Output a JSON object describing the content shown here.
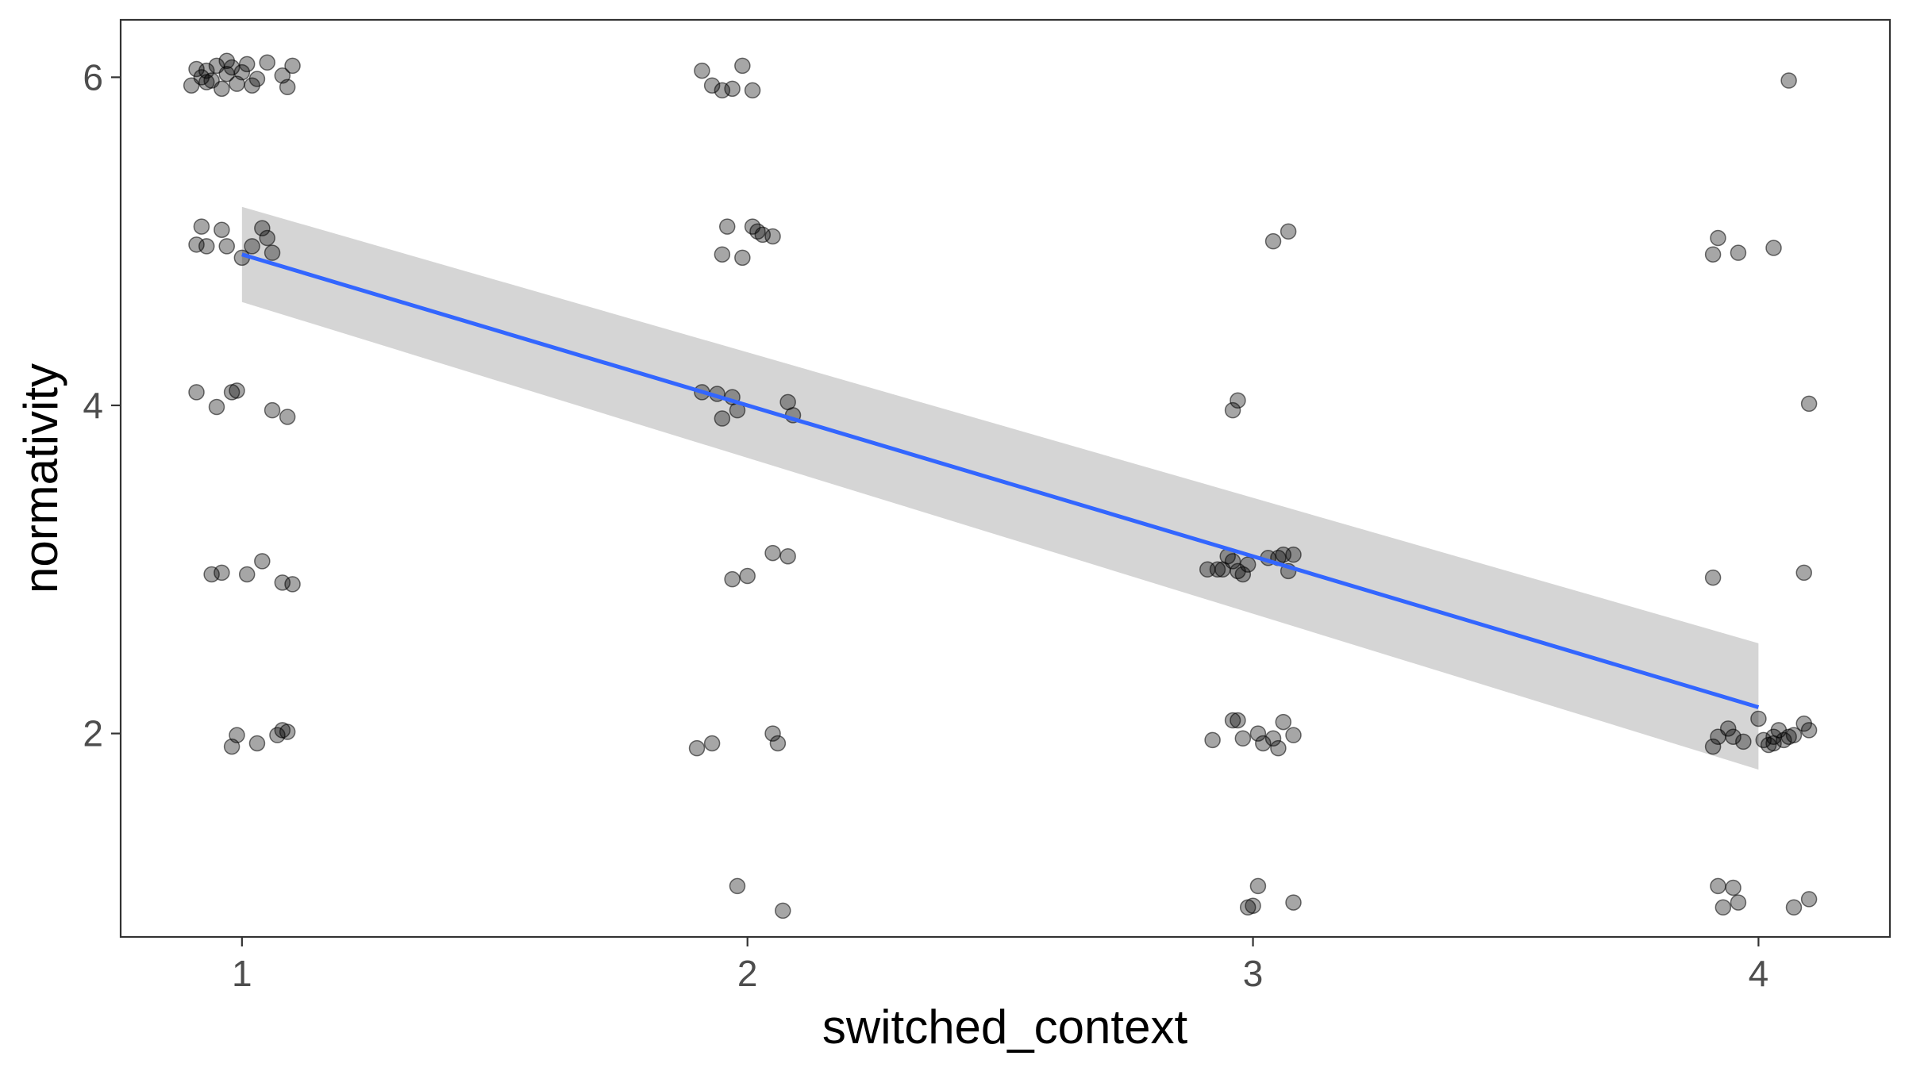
{
  "chart_data": {
    "type": "scatter",
    "title": "",
    "xlabel": "switched_context",
    "ylabel": "normativity",
    "xlim": [
      0.76,
      4.26
    ],
    "ylim": [
      0.76,
      6.35
    ],
    "x_ticks": [
      1,
      2,
      3,
      4
    ],
    "y_ticks": [
      2,
      4,
      6
    ],
    "x_tick_labels": [
      "1",
      "2",
      "3",
      "4"
    ],
    "y_tick_labels": [
      "2",
      "4",
      "6"
    ],
    "grid": false,
    "legend": "none",
    "colors": {
      "points": "#000000",
      "fit_line": "#3366FF",
      "confidence_band": "#D3D3D3",
      "panel_border": "#333333",
      "tick_text": "#4D4D4D"
    },
    "fit": {
      "method": "linear",
      "x_range": [
        1,
        4
      ],
      "y_at_start": 4.92,
      "y_at_end": 2.16,
      "band_at_start": [
        4.63,
        5.21
      ],
      "band_at_end": [
        1.78,
        2.55
      ]
    },
    "points": [
      {
        "x": 0.9,
        "y": 5.95
      },
      {
        "x": 0.91,
        "y": 6.05
      },
      {
        "x": 0.92,
        "y": 6.0
      },
      {
        "x": 0.93,
        "y": 6.04
      },
      {
        "x": 0.94,
        "y": 5.98
      },
      {
        "x": 0.95,
        "y": 6.07
      },
      {
        "x": 0.96,
        "y": 5.93
      },
      {
        "x": 0.97,
        "y": 6.02
      },
      {
        "x": 0.98,
        "y": 6.06
      },
      {
        "x": 0.99,
        "y": 5.96
      },
      {
        "x": 1.0,
        "y": 6.03
      },
      {
        "x": 1.01,
        "y": 6.08
      },
      {
        "x": 1.03,
        "y": 5.99
      },
      {
        "x": 1.05,
        "y": 6.09
      },
      {
        "x": 1.08,
        "y": 6.01
      },
      {
        "x": 1.09,
        "y": 5.94
      },
      {
        "x": 1.02,
        "y": 5.95
      },
      {
        "x": 0.97,
        "y": 6.1
      },
      {
        "x": 1.1,
        "y": 6.07
      },
      {
        "x": 0.93,
        "y": 5.97
      },
      {
        "x": 0.91,
        "y": 4.98
      },
      {
        "x": 0.92,
        "y": 5.09
      },
      {
        "x": 0.93,
        "y": 4.97
      },
      {
        "x": 0.96,
        "y": 5.07
      },
      {
        "x": 0.97,
        "y": 4.97
      },
      {
        "x": 1.0,
        "y": 4.9
      },
      {
        "x": 1.02,
        "y": 4.97
      },
      {
        "x": 1.04,
        "y": 5.08
      },
      {
        "x": 1.06,
        "y": 4.93
      },
      {
        "x": 1.05,
        "y": 5.02
      },
      {
        "x": 0.91,
        "y": 4.08
      },
      {
        "x": 0.95,
        "y": 3.99
      },
      {
        "x": 0.98,
        "y": 4.08
      },
      {
        "x": 1.06,
        "y": 3.97
      },
      {
        "x": 1.09,
        "y": 3.93
      },
      {
        "x": 0.99,
        "y": 4.09
      },
      {
        "x": 0.94,
        "y": 2.97
      },
      {
        "x": 0.96,
        "y": 2.98
      },
      {
        "x": 1.01,
        "y": 2.97
      },
      {
        "x": 1.04,
        "y": 3.05
      },
      {
        "x": 1.08,
        "y": 2.92
      },
      {
        "x": 1.1,
        "y": 2.91
      },
      {
        "x": 0.98,
        "y": 1.92
      },
      {
        "x": 0.99,
        "y": 1.99
      },
      {
        "x": 1.03,
        "y": 1.94
      },
      {
        "x": 1.07,
        "y": 1.99
      },
      {
        "x": 1.08,
        "y": 2.02
      },
      {
        "x": 1.09,
        "y": 2.01
      },
      {
        "x": 1.91,
        "y": 6.04
      },
      {
        "x": 1.93,
        "y": 5.95
      },
      {
        "x": 1.95,
        "y": 5.92
      },
      {
        "x": 1.97,
        "y": 5.93
      },
      {
        "x": 1.99,
        "y": 6.07
      },
      {
        "x": 2.01,
        "y": 5.92
      },
      {
        "x": 1.96,
        "y": 5.09
      },
      {
        "x": 1.95,
        "y": 4.92
      },
      {
        "x": 1.99,
        "y": 4.9
      },
      {
        "x": 2.01,
        "y": 5.09
      },
      {
        "x": 2.02,
        "y": 5.06
      },
      {
        "x": 2.03,
        "y": 5.04
      },
      {
        "x": 2.05,
        "y": 5.03
      },
      {
        "x": 1.91,
        "y": 4.08
      },
      {
        "x": 1.94,
        "y": 4.07
      },
      {
        "x": 1.95,
        "y": 3.92
      },
      {
        "x": 1.97,
        "y": 4.05
      },
      {
        "x": 1.98,
        "y": 3.97
      },
      {
        "x": 2.08,
        "y": 4.02
      },
      {
        "x": 2.09,
        "y": 3.94
      },
      {
        "x": 1.97,
        "y": 2.94
      },
      {
        "x": 2.0,
        "y": 2.96
      },
      {
        "x": 2.05,
        "y": 3.1
      },
      {
        "x": 2.08,
        "y": 3.08
      },
      {
        "x": 1.9,
        "y": 1.91
      },
      {
        "x": 1.93,
        "y": 1.94
      },
      {
        "x": 2.05,
        "y": 2.0
      },
      {
        "x": 2.06,
        "y": 1.94
      },
      {
        "x": 1.98,
        "y": 1.07
      },
      {
        "x": 2.07,
        "y": 0.92
      },
      {
        "x": 3.04,
        "y": 5.0
      },
      {
        "x": 3.07,
        "y": 5.06
      },
      {
        "x": 2.96,
        "y": 3.97
      },
      {
        "x": 2.97,
        "y": 4.03
      },
      {
        "x": 2.91,
        "y": 3.0
      },
      {
        "x": 2.93,
        "y": 3.0
      },
      {
        "x": 2.94,
        "y": 3.0
      },
      {
        "x": 2.96,
        "y": 3.05
      },
      {
        "x": 2.97,
        "y": 2.99
      },
      {
        "x": 2.98,
        "y": 2.97
      },
      {
        "x": 2.99,
        "y": 3.03
      },
      {
        "x": 3.03,
        "y": 3.07
      },
      {
        "x": 3.05,
        "y": 3.07
      },
      {
        "x": 3.06,
        "y": 3.09
      },
      {
        "x": 3.07,
        "y": 2.99
      },
      {
        "x": 3.08,
        "y": 3.09
      },
      {
        "x": 2.95,
        "y": 3.08
      },
      {
        "x": 2.92,
        "y": 1.96
      },
      {
        "x": 2.96,
        "y": 2.08
      },
      {
        "x": 2.97,
        "y": 2.08
      },
      {
        "x": 2.98,
        "y": 1.97
      },
      {
        "x": 3.01,
        "y": 2.0
      },
      {
        "x": 3.02,
        "y": 1.94
      },
      {
        "x": 3.04,
        "y": 1.97
      },
      {
        "x": 3.05,
        "y": 1.91
      },
      {
        "x": 3.06,
        "y": 2.07
      },
      {
        "x": 3.08,
        "y": 1.99
      },
      {
        "x": 2.99,
        "y": 0.94
      },
      {
        "x": 3.0,
        "y": 0.95
      },
      {
        "x": 3.01,
        "y": 1.07
      },
      {
        "x": 3.08,
        "y": 0.97
      },
      {
        "x": 4.06,
        "y": 5.98
      },
      {
        "x": 3.91,
        "y": 4.92
      },
      {
        "x": 3.92,
        "y": 5.02
      },
      {
        "x": 3.96,
        "y": 4.93
      },
      {
        "x": 4.03,
        "y": 4.96
      },
      {
        "x": 4.1,
        "y": 4.01
      },
      {
        "x": 3.91,
        "y": 2.95
      },
      {
        "x": 4.09,
        "y": 2.98
      },
      {
        "x": 3.91,
        "y": 1.92
      },
      {
        "x": 3.92,
        "y": 1.98
      },
      {
        "x": 3.94,
        "y": 2.03
      },
      {
        "x": 3.95,
        "y": 1.98
      },
      {
        "x": 3.97,
        "y": 1.95
      },
      {
        "x": 4.0,
        "y": 2.09
      },
      {
        "x": 4.01,
        "y": 1.96
      },
      {
        "x": 4.02,
        "y": 1.93
      },
      {
        "x": 4.03,
        "y": 1.94
      },
      {
        "x": 4.04,
        "y": 2.02
      },
      {
        "x": 4.05,
        "y": 1.96
      },
      {
        "x": 4.06,
        "y": 1.98
      },
      {
        "x": 4.07,
        "y": 1.99
      },
      {
        "x": 4.09,
        "y": 2.06
      },
      {
        "x": 4.1,
        "y": 2.02
      },
      {
        "x": 4.03,
        "y": 1.98
      },
      {
        "x": 3.92,
        "y": 1.07
      },
      {
        "x": 3.93,
        "y": 0.94
      },
      {
        "x": 3.95,
        "y": 1.06
      },
      {
        "x": 3.96,
        "y": 0.97
      },
      {
        "x": 4.07,
        "y": 0.94
      },
      {
        "x": 4.1,
        "y": 0.99
      }
    ]
  }
}
